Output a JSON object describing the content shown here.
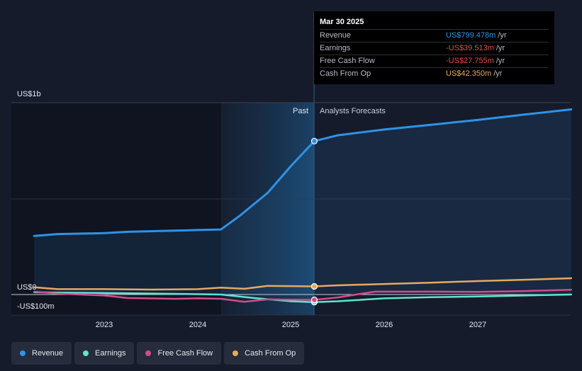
{
  "chart_data": {
    "type": "line",
    "y_axis_labels": [
      "US$1b",
      "US$0",
      "-US$100m"
    ],
    "x_ticks": [
      "2023",
      "2024",
      "2025",
      "2026",
      "2027"
    ],
    "ylim": [
      -100,
      1000
    ],
    "region_labels": {
      "past": "Past",
      "forecast": "Analysts Forecasts"
    },
    "series": [
      {
        "name": "Revenue",
        "color": "#2e93e6",
        "points": [
          [
            2022.25,
            305
          ],
          [
            2022.5,
            315
          ],
          [
            2023.0,
            320
          ],
          [
            2023.25,
            327
          ],
          [
            2023.75,
            333
          ],
          [
            2024.0,
            336
          ],
          [
            2024.25,
            339
          ],
          [
            2024.45,
            410
          ],
          [
            2024.75,
            530
          ],
          [
            2025.0,
            670
          ],
          [
            2025.25,
            799.5
          ],
          [
            2025.5,
            830
          ],
          [
            2026.0,
            860
          ],
          [
            2026.5,
            885
          ],
          [
            2027.0,
            910
          ],
          [
            2027.5,
            938
          ],
          [
            2028.0,
            965
          ]
        ]
      },
      {
        "name": "Earnings",
        "color": "#5ee6cf",
        "points": [
          [
            2022.25,
            12
          ],
          [
            2022.5,
            10
          ],
          [
            2023.0,
            8
          ],
          [
            2023.5,
            5
          ],
          [
            2024.0,
            2
          ],
          [
            2024.25,
            0
          ],
          [
            2024.6,
            -18
          ],
          [
            2025.0,
            -35
          ],
          [
            2025.25,
            -39.5
          ],
          [
            2025.5,
            -35
          ],
          [
            2026.0,
            -20
          ],
          [
            2026.5,
            -14
          ],
          [
            2027.0,
            -10
          ],
          [
            2027.5,
            -5
          ],
          [
            2028.0,
            0
          ]
        ]
      },
      {
        "name": "Free Cash Flow",
        "color": "#d04d8c",
        "points": [
          [
            2022.25,
            15
          ],
          [
            2022.5,
            5
          ],
          [
            2023.0,
            -5
          ],
          [
            2023.25,
            -18
          ],
          [
            2023.75,
            -22
          ],
          [
            2024.0,
            -20
          ],
          [
            2024.25,
            -22
          ],
          [
            2024.5,
            -38
          ],
          [
            2024.75,
            -25
          ],
          [
            2025.0,
            -27
          ],
          [
            2025.25,
            -27.8
          ],
          [
            2025.5,
            -15
          ],
          [
            2025.9,
            15
          ],
          [
            2026.5,
            15
          ],
          [
            2027.0,
            14
          ],
          [
            2027.5,
            18
          ],
          [
            2028.0,
            25
          ]
        ]
      },
      {
        "name": "Cash From Op",
        "color": "#e6aa5e",
        "points": [
          [
            2022.25,
            38
          ],
          [
            2022.5,
            28
          ],
          [
            2023.0,
            28
          ],
          [
            2023.5,
            26
          ],
          [
            2024.0,
            28
          ],
          [
            2024.25,
            36
          ],
          [
            2024.5,
            30
          ],
          [
            2024.75,
            45
          ],
          [
            2025.0,
            44
          ],
          [
            2025.25,
            42.4
          ],
          [
            2025.5,
            48
          ],
          [
            2026.0,
            55
          ],
          [
            2026.5,
            62
          ],
          [
            2027.0,
            70
          ],
          [
            2027.5,
            77
          ],
          [
            2028.0,
            85
          ]
        ]
      }
    ]
  },
  "tooltip": {
    "date": "Mar 30 2025",
    "rows": [
      {
        "label": "Revenue",
        "value": "US$799.478m",
        "unit": "/yr",
        "color": "#2e93e6"
      },
      {
        "label": "Earnings",
        "value": "-US$39.513m",
        "unit": "/yr",
        "color": "#e84a4a"
      },
      {
        "label": "Free Cash Flow",
        "value": "-US$27.755m",
        "unit": "/yr",
        "color": "#e84a4a"
      },
      {
        "label": "Cash From Op",
        "value": "US$42.350m",
        "unit": "/yr",
        "color": "#e6aa5e"
      }
    ]
  },
  "legend": [
    {
      "label": "Revenue",
      "color": "#2e93e6"
    },
    {
      "label": "Earnings",
      "color": "#5ee6cf"
    },
    {
      "label": "Free Cash Flow",
      "color": "#d04d8c"
    },
    {
      "label": "Cash From Op",
      "color": "#e6aa5e"
    }
  ]
}
